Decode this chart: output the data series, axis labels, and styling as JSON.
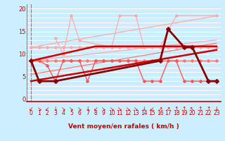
{
  "x": [
    0,
    1,
    2,
    3,
    4,
    5,
    6,
    7,
    8,
    9,
    10,
    11,
    12,
    13,
    14,
    15,
    16,
    17,
    18,
    19,
    20,
    21,
    22,
    23
  ],
  "background_color": "#cceeff",
  "grid_color": "#ffffff",
  "xlabel": "Vent moyen/en rafales ( km/h )",
  "yticks": [
    0,
    5,
    10,
    15,
    20
  ],
  "ylim": [
    -0.5,
    21
  ],
  "xlim": [
    -0.5,
    23.5
  ],
  "line_light_flat": {
    "y": [
      11.5,
      11.5,
      11.5,
      11.5,
      11.5,
      11.5,
      11.5,
      11.5,
      11.5,
      11.5,
      11.5,
      11.5,
      11.5,
      11.5,
      11.5,
      11.5,
      11.5,
      11.5,
      11.5,
      11.5,
      11.5,
      11.5,
      11.5,
      11.5
    ],
    "color": "#ffaaaa",
    "lw": 1.0,
    "marker": "D",
    "ms": 2.0
  },
  "line_light_trend_upper": {
    "y": [
      11.5,
      11.8,
      12.1,
      12.4,
      12.7,
      13.0,
      13.3,
      13.6,
      13.9,
      14.2,
      14.5,
      14.8,
      15.1,
      15.4,
      15.7,
      16.0,
      16.3,
      16.6,
      16.9,
      17.2,
      17.5,
      17.8,
      18.1,
      18.4
    ],
    "color": "#ffaaaa",
    "lw": 0.9
  },
  "line_light_trend_lower": {
    "y": [
      8.5,
      8.7,
      8.9,
      9.1,
      9.3,
      9.5,
      9.7,
      9.9,
      10.1,
      10.3,
      10.5,
      10.7,
      10.9,
      11.1,
      11.3,
      11.5,
      11.7,
      11.9,
      12.1,
      12.3,
      12.5,
      12.7,
      12.9,
      13.1
    ],
    "color": "#ffaaaa",
    "lw": 0.9
  },
  "line_light_wavy": {
    "y": [
      null,
      null,
      null,
      13.5,
      10.0,
      18.5,
      13.0,
      null,
      null,
      null,
      11.5,
      18.5,
      null,
      18.5,
      11.5,
      null,
      11.5,
      null,
      18.5,
      null,
      null,
      null,
      null,
      18.5
    ],
    "color": "#ffaaaa",
    "lw": 0.9,
    "marker": "D",
    "ms": 2.0
  },
  "line_mid_flat": {
    "y": [
      8.5,
      8.5,
      8.5,
      8.5,
      8.5,
      8.5,
      8.5,
      8.5,
      8.5,
      8.5,
      8.5,
      8.5,
      8.5,
      8.5,
      8.5,
      8.5,
      8.5,
      8.5,
      8.5,
      8.5,
      8.5,
      8.5,
      8.5,
      8.5
    ],
    "color": "#ff7777",
    "lw": 1.0,
    "marker": "D",
    "ms": 2.0
  },
  "line_mid_trend": {
    "y": [
      5.5,
      5.8,
      6.1,
      6.4,
      6.7,
      7.0,
      7.3,
      7.6,
      7.9,
      8.2,
      8.5,
      8.8,
      9.1,
      9.4,
      9.7,
      10.0,
      10.3,
      10.6,
      10.9,
      11.2,
      11.5,
      11.8,
      12.1,
      12.4
    ],
    "color": "#ff7777",
    "lw": 0.9
  },
  "line_mid_wavy": {
    "y": [
      8.5,
      8.5,
      7.5,
      4.0,
      8.5,
      8.5,
      8.5,
      4.0,
      8.5,
      8.5,
      8.5,
      8.5,
      8.5,
      8.5,
      4.0,
      4.0,
      4.0,
      8.5,
      8.5,
      4.0,
      4.0,
      4.0,
      4.0,
      4.0
    ],
    "color": "#ff5555",
    "lw": 1.0,
    "marker": "D",
    "ms": 2.0
  },
  "line_dark_trend_upper": {
    "y": [
      8.5,
      8.9,
      9.3,
      9.7,
      10.1,
      10.5,
      10.9,
      11.3,
      11.7,
      11.7,
      11.7,
      11.7,
      11.7,
      11.7,
      11.7,
      11.7,
      11.7,
      11.7,
      11.7,
      11.7,
      11.7,
      11.7,
      11.7,
      11.7
    ],
    "color": "#cc0000",
    "lw": 1.8
  },
  "line_dark_trend_lower": {
    "y": [
      4.0,
      4.3,
      4.6,
      4.9,
      5.2,
      5.5,
      5.8,
      6.1,
      6.4,
      6.7,
      7.0,
      7.3,
      7.6,
      7.9,
      8.2,
      8.5,
      8.8,
      9.1,
      9.4,
      9.7,
      10.0,
      10.3,
      10.6,
      10.9
    ],
    "color": "#cc0000",
    "lw": 1.8
  },
  "line_dark_wavy": {
    "y": [
      8.5,
      4.0,
      null,
      4.0,
      null,
      null,
      null,
      null,
      null,
      null,
      null,
      null,
      null,
      null,
      null,
      null,
      8.5,
      15.5,
      null,
      11.5,
      11.5,
      null,
      4.0,
      4.0
    ],
    "color": "#880000",
    "lw": 2.0,
    "marker": "D",
    "ms": 3.0
  },
  "arrow_symbols": [
    "↙",
    "↘",
    "↙",
    "↓",
    "↘",
    "↘",
    "↘",
    "↓",
    "↙",
    "↘",
    "↘",
    "↘",
    "↘",
    "↘",
    "↓",
    "↙",
    "↗",
    "↗",
    "↑",
    "↑",
    "↖",
    "↑",
    "↑",
    "↓"
  ],
  "arrow_color": "#cc0000",
  "arrow_fontsize": 5.5,
  "num_fontsize": 5.5
}
